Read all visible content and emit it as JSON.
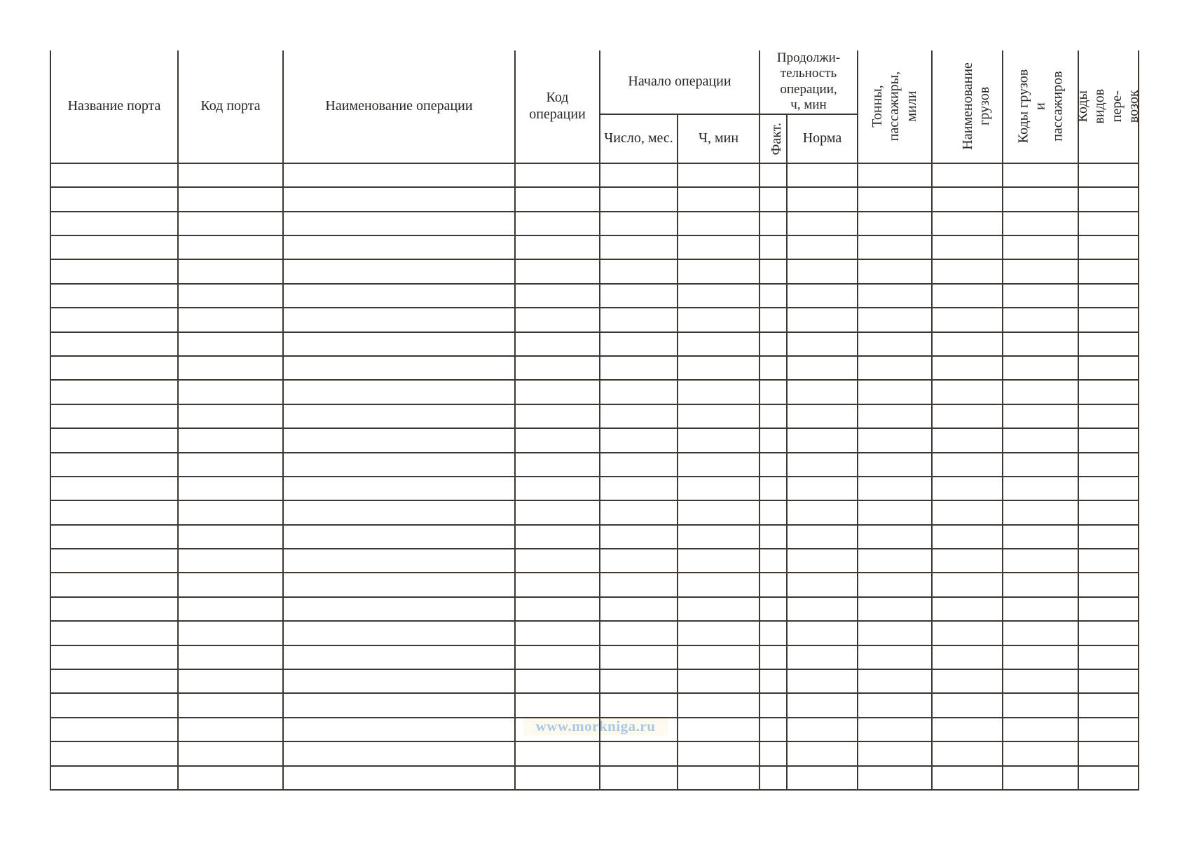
{
  "table": {
    "header": {
      "port_name": "Название порта",
      "port_code": "Код порта",
      "operation_name": "Наименование операции",
      "operation_code": "Код\nоперации",
      "operation_start_group": "Начало операции",
      "day_month": "Число, мес.",
      "hours_minutes": "Ч, мин",
      "duration_group": "Продолжи-\nтельность\nоперации,\nч, мин",
      "actual": "Факт.",
      "norm": "Норма",
      "tons_passengers_miles": "Тонны,\nпассажиры,\nмили",
      "cargo_names": "Наименование\nгрузов",
      "cargo_passenger_codes": "Коды грузов\nи пассажиров",
      "transport_type_codes": "Коды видов пере-\nвозок"
    },
    "body": {
      "row_count": 26,
      "column_count": 12,
      "cells_empty": true
    }
  },
  "watermark": {
    "text": "www.morkniga.ru",
    "color": "#a9c8e3"
  },
  "colors": {
    "page_background": "#ffffff",
    "border": "#3e3834",
    "text": "#2a2622",
    "watermark_band": "#fcfaef"
  }
}
